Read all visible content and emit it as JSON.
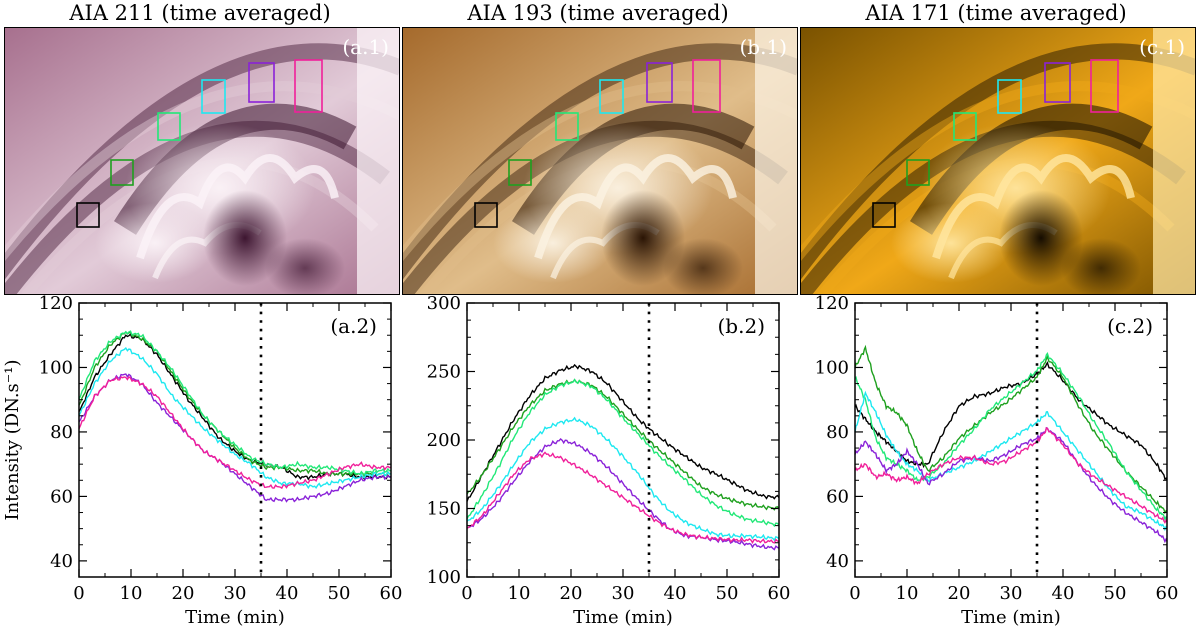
{
  "panels": [
    {
      "title": "AIA 211 (time averaged)",
      "label": "(a.1)",
      "colors": {
        "dark": "#3d1530",
        "mid": "#a7708e",
        "light": "#e2cbd8",
        "bright": "#fbf3f7"
      }
    },
    {
      "title": "AIA 193 (time averaged)",
      "label": "(b.1)",
      "colors": {
        "dark": "#2a1404",
        "mid": "#a56a2c",
        "light": "#e0bd8a",
        "bright": "#fbf2e2"
      }
    },
    {
      "title": "AIA 171 (time averaged)",
      "label": "(c.1)",
      "colors": {
        "dark": "#150c00",
        "mid": "#7a5200",
        "light": "#f0a818",
        "bright": "#ffe6a0"
      }
    }
  ],
  "box_colors": [
    "#000000",
    "#1fa01f",
    "#22e878",
    "#1ee8f0",
    "#8a22d8",
    "#f0209a"
  ],
  "ylabel": "Intensity (DN.s⁻¹)",
  "chart_data": [
    {
      "type": "line",
      "label": "(a.2)",
      "xlabel": "Time (min)",
      "xlim": [
        0,
        60
      ],
      "ylim": [
        35,
        120
      ],
      "xticks": [
        0,
        10,
        20,
        30,
        40,
        50,
        60
      ],
      "yticks": [
        40,
        60,
        80,
        100,
        120
      ],
      "vline": 35,
      "x": [
        0,
        3,
        6,
        9,
        12,
        15,
        18,
        21,
        24,
        27,
        30,
        33,
        36,
        39,
        42,
        45,
        48,
        51,
        54,
        57,
        60
      ],
      "series": [
        {
          "color": "#000000",
          "values": [
            86,
            97,
            104,
            110,
            109,
            104,
            97,
            90,
            84,
            78,
            74,
            71,
            70,
            69,
            66,
            66,
            67,
            67,
            66,
            66,
            66
          ]
        },
        {
          "color": "#1fa01f",
          "values": [
            88,
            100,
            107,
            111,
            109,
            105,
            98,
            91,
            85,
            80,
            75,
            71,
            69,
            69,
            68,
            68,
            67,
            67,
            67,
            67,
            67
          ]
        },
        {
          "color": "#22e878",
          "values": [
            90,
            102,
            108,
            111,
            110,
            105,
            99,
            92,
            85,
            80,
            76,
            72,
            70,
            69,
            70,
            69,
            69,
            68,
            67,
            68,
            68
          ]
        },
        {
          "color": "#1ee8f0",
          "values": [
            85,
            95,
            102,
            106,
            103,
            98,
            91,
            86,
            81,
            77,
            73,
            70,
            66,
            64,
            64,
            63,
            64,
            65,
            66,
            67,
            67
          ]
        },
        {
          "color": "#8a22d8",
          "values": [
            83,
            91,
            96,
            98,
            95,
            89,
            84,
            79,
            74,
            71,
            67,
            63,
            59,
            59,
            59,
            60,
            61,
            63,
            65,
            66,
            66
          ]
        },
        {
          "color": "#f0209a",
          "values": [
            81,
            91,
            96,
            97,
            95,
            91,
            85,
            79,
            74,
            71,
            68,
            65,
            63,
            63,
            64,
            65,
            67,
            69,
            70,
            69,
            69
          ]
        }
      ]
    },
    {
      "type": "line",
      "label": "(b.2)",
      "xlabel": "Time (min)",
      "xlim": [
        0,
        60
      ],
      "ylim": [
        100,
        300
      ],
      "xticks": [
        0,
        10,
        20,
        30,
        40,
        50,
        60
      ],
      "yticks": [
        100,
        150,
        200,
        250,
        300
      ],
      "vline": 35,
      "x": [
        0,
        3,
        6,
        9,
        12,
        15,
        18,
        21,
        24,
        27,
        30,
        33,
        36,
        39,
        42,
        45,
        48,
        51,
        54,
        57,
        60
      ],
      "series": [
        {
          "color": "#000000",
          "values": [
            155,
            175,
            195,
            215,
            232,
            245,
            251,
            254,
            250,
            241,
            228,
            215,
            205,
            196,
            188,
            180,
            175,
            169,
            163,
            159,
            158
          ]
        },
        {
          "color": "#1fa01f",
          "values": [
            160,
            175,
            192,
            210,
            225,
            236,
            241,
            243,
            240,
            231,
            219,
            207,
            196,
            186,
            176,
            166,
            160,
            156,
            153,
            151,
            150
          ]
        },
        {
          "color": "#22e878",
          "values": [
            142,
            160,
            180,
            202,
            220,
            233,
            240,
            243,
            239,
            229,
            216,
            204,
            192,
            181,
            171,
            160,
            152,
            146,
            142,
            140,
            138
          ]
        },
        {
          "color": "#1ee8f0",
          "values": [
            140,
            150,
            165,
            182,
            198,
            208,
            213,
            215,
            210,
            200,
            188,
            175,
            160,
            148,
            140,
            135,
            131,
            130,
            130,
            129,
            128
          ]
        },
        {
          "color": "#8a22d8",
          "values": [
            135,
            143,
            155,
            170,
            184,
            195,
            200,
            197,
            190,
            180,
            168,
            156,
            145,
            135,
            130,
            129,
            127,
            126,
            124,
            122,
            121
          ]
        },
        {
          "color": "#f0209a",
          "values": [
            135,
            145,
            160,
            175,
            186,
            190,
            187,
            181,
            174,
            166,
            158,
            150,
            142,
            135,
            131,
            129,
            128,
            127,
            127,
            126,
            126
          ]
        }
      ]
    },
    {
      "type": "line",
      "label": "(c.2)",
      "xlabel": "Time (min)",
      "xlim": [
        0,
        60
      ],
      "ylim": [
        35,
        120
      ],
      "xticks": [
        0,
        10,
        20,
        30,
        40,
        50,
        60
      ],
      "yticks": [
        40,
        60,
        80,
        100,
        120
      ],
      "vline": 35,
      "x": [
        0,
        2,
        4,
        6,
        8,
        10,
        12,
        14,
        17,
        20,
        23,
        26,
        29,
        32,
        35,
        37,
        40,
        43,
        46,
        49,
        52,
        55,
        58,
        60
      ],
      "series": [
        {
          "color": "#000000",
          "values": [
            88,
            84,
            80,
            77,
            74,
            71,
            70,
            70,
            80,
            88,
            91,
            92,
            94,
            95,
            98,
            101,
            96,
            90,
            86,
            82,
            79,
            76,
            70,
            65
          ]
        },
        {
          "color": "#1fa01f",
          "values": [
            100,
            106,
            95,
            88,
            86,
            82,
            74,
            68,
            72,
            78,
            82,
            86,
            89,
            93,
            97,
            103,
            97,
            88,
            80,
            74,
            68,
            63,
            58,
            55
          ]
        },
        {
          "color": "#22e878",
          "values": [
            97,
            90,
            78,
            72,
            70,
            68,
            65,
            66,
            70,
            76,
            81,
            87,
            91,
            95,
            99,
            104,
            98,
            91,
            83,
            76,
            68,
            62,
            56,
            53
          ]
        },
        {
          "color": "#1ee8f0",
          "values": [
            80,
            92,
            86,
            79,
            74,
            70,
            68,
            65,
            67,
            69,
            71,
            74,
            77,
            80,
            83,
            86,
            80,
            74,
            68,
            62,
            57,
            55,
            52,
            50
          ]
        },
        {
          "color": "#8a22d8",
          "values": [
            73,
            77,
            73,
            68,
            70,
            74,
            70,
            64,
            67,
            71,
            72,
            71,
            73,
            76,
            78,
            81,
            77,
            70,
            64,
            59,
            55,
            52,
            49,
            46
          ]
        },
        {
          "color": "#f0209a",
          "values": [
            68,
            70,
            66,
            67,
            65,
            66,
            64,
            67,
            70,
            72,
            72,
            70,
            71,
            74,
            77,
            81,
            76,
            70,
            66,
            63,
            60,
            57,
            54,
            52
          ]
        }
      ]
    }
  ]
}
